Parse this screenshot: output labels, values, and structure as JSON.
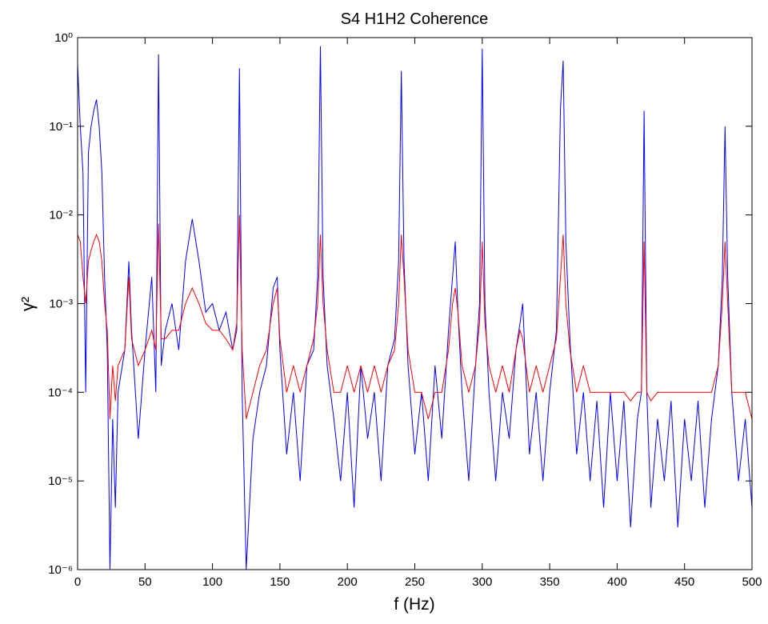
{
  "chart_data": {
    "type": "line",
    "title": "S4 H1H2 Coherence",
    "xlabel": "f (Hz)",
    "ylabel": "γ²",
    "log_y": true,
    "grid": false,
    "xlim": [
      0,
      500
    ],
    "xticks": [
      0,
      50,
      100,
      150,
      200,
      250,
      300,
      350,
      400,
      450,
      500
    ],
    "ylim": [
      1e-06,
      1
    ],
    "yticks": [
      {
        "value": 1e-06,
        "label": "10⁻⁶"
      },
      {
        "value": 1e-05,
        "label": "10⁻⁵"
      },
      {
        "value": 0.0001,
        "label": "10⁻⁴"
      },
      {
        "value": 0.001,
        "label": "10⁻³"
      },
      {
        "value": 0.01,
        "label": "10⁻²"
      },
      {
        "value": 0.1,
        "label": "10⁻¹"
      },
      {
        "value": 1,
        "label": "10⁰"
      }
    ],
    "x": [
      0,
      2,
      4,
      6,
      8,
      10,
      12,
      14,
      16,
      18,
      20,
      22,
      24,
      26,
      28,
      30,
      35,
      38,
      40,
      45,
      50,
      55,
      58,
      60,
      62,
      65,
      70,
      75,
      80,
      85,
      90,
      95,
      100,
      105,
      110,
      115,
      118,
      120,
      122,
      125,
      130,
      135,
      140,
      145,
      148,
      150,
      155,
      160,
      165,
      170,
      175,
      178,
      180,
      182,
      185,
      190,
      195,
      200,
      205,
      210,
      215,
      220,
      225,
      230,
      235,
      238,
      240,
      242,
      245,
      250,
      255,
      260,
      265,
      270,
      275,
      278,
      280,
      282,
      285,
      290,
      295,
      298,
      300,
      302,
      305,
      310,
      315,
      320,
      325,
      328,
      330,
      335,
      340,
      345,
      350,
      355,
      358,
      360,
      362,
      365,
      370,
      375,
      380,
      385,
      390,
      395,
      400,
      405,
      410,
      415,
      418,
      420,
      422,
      425,
      430,
      435,
      440,
      445,
      450,
      455,
      460,
      465,
      470,
      475,
      478,
      480,
      482,
      485,
      490,
      495,
      500
    ],
    "series": [
      {
        "color": "#0000ff",
        "values": [
          0.5,
          0.1,
          0.03,
          0.0001,
          0.05,
          0.1,
          0.15,
          0.2,
          0.1,
          0.03,
          0.002,
          0.0003,
          1e-06,
          5e-05,
          5e-06,
          0.0001,
          0.0003,
          0.003,
          0.0005,
          3e-05,
          0.0003,
          0.002,
          0.0001,
          0.65,
          0.0002,
          0.0005,
          0.001,
          0.0003,
          0.003,
          0.009,
          0.003,
          0.0008,
          0.001,
          0.0005,
          0.0008,
          0.0003,
          0.0005,
          0.45,
          0.0001,
          1e-06,
          3e-05,
          0.0001,
          0.0002,
          0.0015,
          0.002,
          0.0003,
          2e-05,
          0.0001,
          1e-05,
          0.0002,
          0.0003,
          0.002,
          0.8,
          0.002,
          0.0002,
          5e-05,
          1e-05,
          0.0001,
          5e-06,
          0.0002,
          3e-05,
          0.0001,
          1e-05,
          0.0002,
          0.0004,
          0.003,
          0.42,
          0.003,
          0.0002,
          2e-05,
          0.0001,
          1e-05,
          0.0002,
          3e-05,
          0.0005,
          0.002,
          0.005,
          0.0008,
          0.0001,
          1e-05,
          0.0002,
          0.001,
          0.75,
          0.001,
          0.0001,
          1e-05,
          0.0001,
          3e-05,
          0.0003,
          0.0006,
          0.001,
          2e-05,
          0.0001,
          1e-05,
          0.0001,
          0.0005,
          0.16,
          0.55,
          0.005,
          0.0004,
          2e-05,
          0.0001,
          1e-05,
          8e-05,
          5e-06,
          0.0001,
          1e-05,
          8e-05,
          3e-06,
          5e-05,
          0.0001,
          0.15,
          0.0001,
          5e-06,
          5e-05,
          1e-05,
          8e-05,
          3e-06,
          5e-05,
          1e-05,
          8e-05,
          5e-06,
          5e-05,
          0.0002,
          0.002,
          0.1,
          0.002,
          0.0001,
          1e-05,
          5e-05,
          5e-06
        ]
      },
      {
        "color": "#ff0000",
        "values": [
          0.006,
          0.005,
          0.002,
          0.001,
          0.003,
          0.004,
          0.005,
          0.006,
          0.005,
          0.003,
          0.001,
          0.0005,
          5e-05,
          0.0002,
          8e-05,
          0.0002,
          0.0003,
          0.002,
          0.0004,
          0.0002,
          0.0003,
          0.0005,
          0.0003,
          0.008,
          0.0004,
          0.0004,
          0.0005,
          0.0005,
          0.001,
          0.0015,
          0.001,
          0.0006,
          0.0005,
          0.0005,
          0.0004,
          0.0003,
          0.0006,
          0.01,
          0.0003,
          5e-05,
          0.0001,
          0.0002,
          0.0003,
          0.001,
          0.0015,
          0.0004,
          0.0001,
          0.0002,
          0.0001,
          0.0002,
          0.0004,
          0.001,
          0.006,
          0.001,
          0.0003,
          0.0001,
          0.0001,
          0.0002,
          0.0001,
          0.0002,
          0.0001,
          0.0002,
          0.0001,
          0.0002,
          0.0003,
          0.001,
          0.006,
          0.002,
          0.0003,
          0.0001,
          0.0001,
          5e-05,
          0.0001,
          0.0001,
          0.0003,
          0.001,
          0.0015,
          0.0008,
          0.0002,
          0.0001,
          0.0002,
          0.0006,
          0.005,
          0.0006,
          0.0002,
          0.0001,
          0.0002,
          0.0001,
          0.0003,
          0.0005,
          0.0004,
          0.0001,
          0.0002,
          0.0001,
          0.0002,
          0.0004,
          0.002,
          0.006,
          0.001,
          0.0003,
          0.0001,
          0.0002,
          0.0001,
          0.0001,
          0.0001,
          0.0001,
          0.0001,
          0.0001,
          8e-05,
          0.0001,
          0.0001,
          0.005,
          0.0001,
          8e-05,
          0.0001,
          0.0001,
          0.0001,
          0.0001,
          0.0001,
          0.0001,
          0.0001,
          0.0001,
          0.0001,
          0.0002,
          0.001,
          0.005,
          0.001,
          0.0001,
          0.0001,
          0.0001,
          5e-05
        ]
      }
    ]
  }
}
